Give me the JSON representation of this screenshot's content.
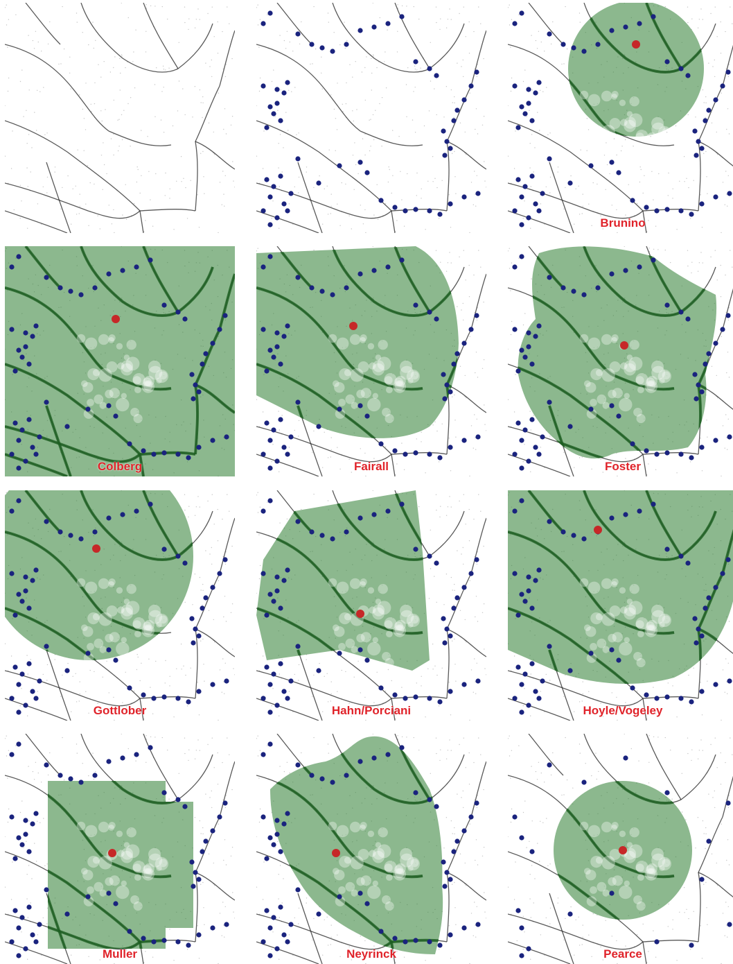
{
  "figure": {
    "colors": {
      "background": "#ffffff",
      "filament": "#222222",
      "void_region": "#2e7d32",
      "galaxy_marker": "#1a237e",
      "center_marker": "#c62828",
      "label": "#e0232a"
    },
    "panels": [
      {
        "id": "p1",
        "label": "",
        "has_void": false,
        "has_galaxies": false,
        "void_shape": "none"
      },
      {
        "id": "p2",
        "label": "",
        "has_void": false,
        "has_galaxies": true,
        "void_shape": "none"
      },
      {
        "id": "p3",
        "label": "Brunino",
        "has_void": true,
        "has_galaxies": true,
        "void_shape": "circle-top"
      },
      {
        "id": "p4",
        "label": "Colberg",
        "has_void": true,
        "has_galaxies": true,
        "void_shape": "full"
      },
      {
        "id": "p5",
        "label": "Fairall",
        "has_void": true,
        "has_galaxies": true,
        "void_shape": "blob-large"
      },
      {
        "id": "p6",
        "label": "Foster",
        "has_void": true,
        "has_galaxies": true,
        "void_shape": "blob-lobed"
      },
      {
        "id": "p7",
        "label": "Gottlober",
        "has_void": true,
        "has_galaxies": true,
        "void_shape": "circle-left"
      },
      {
        "id": "p8",
        "label": "Hahn/Porciani",
        "has_void": true,
        "has_galaxies": true,
        "void_shape": "polygon"
      },
      {
        "id": "p9",
        "label": "Hoyle/Vogeley",
        "has_void": true,
        "has_galaxies": true,
        "void_shape": "blob-round"
      },
      {
        "id": "p10",
        "label": "Muller",
        "has_void": true,
        "has_galaxies": true,
        "void_shape": "square"
      },
      {
        "id": "p11",
        "label": "Neyrinck",
        "has_void": true,
        "has_galaxies": true,
        "void_shape": "irregular"
      },
      {
        "id": "p12",
        "label": "Pearce",
        "has_void": true,
        "has_galaxies": true,
        "void_shape": "circle-center"
      }
    ]
  }
}
